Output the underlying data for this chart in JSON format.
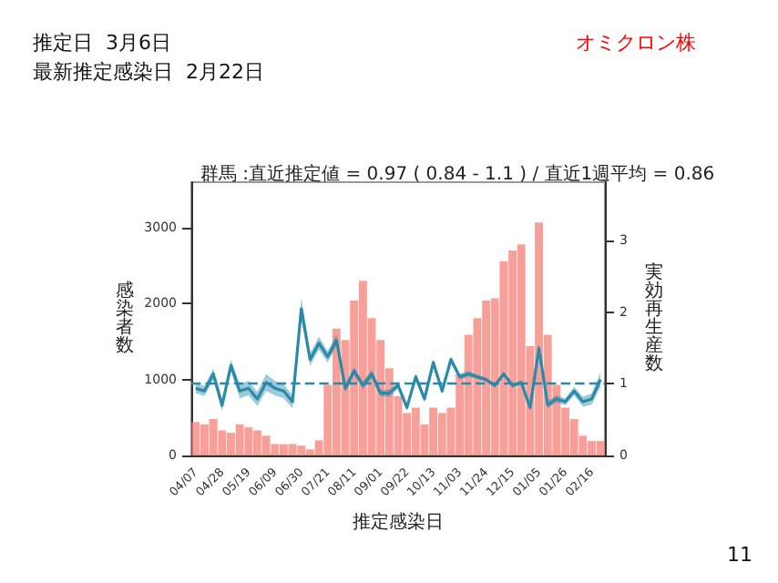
{
  "chart_data": {
    "type": "bar",
    "title": "群馬 :直近推定値 = 0.97 ( 0.84 - 1.1 ) / 直近1週平均 = 0.86",
    "xlabel": "推定感染日",
    "ylabel": "感染者数",
    "y2label": "実効再生産数",
    "annotations": [
      "推定日  3月6日",
      "最新推定感染日  2月22日",
      "オミクロン株",
      "11"
    ],
    "categories": [
      "04/07",
      null,
      null,
      "04/28",
      null,
      null,
      "05/19",
      null,
      null,
      "06/09",
      null,
      null,
      "06/30",
      null,
      null,
      "07/21",
      null,
      null,
      "08/11",
      null,
      null,
      "09/01",
      null,
      null,
      "09/22",
      null,
      null,
      "10/13",
      null,
      null,
      "11/03",
      null,
      null,
      "11/24",
      null,
      null,
      "12/15",
      null,
      null,
      "01/05",
      null,
      null,
      "01/26",
      null,
      null,
      "02/16",
      null
    ],
    "series": [
      {
        "color": "#f8877f",
        "values": [
          440,
          410,
          480,
          330,
          300,
          410,
          370,
          330,
          260,
          150,
          150,
          150,
          130,
          80,
          200,
          930,
          1670,
          1520,
          2040,
          2300,
          1810,
          1520,
          1150,
          780,
          560,
          630,
          410,
          630,
          560,
          630,
          1070,
          1590,
          1810,
          2040,
          2070,
          2560,
          2700,
          2780,
          1440,
          3070,
          1590,
          930,
          630,
          480,
          260,
          190,
          190
        ]
      },
      {
        "type": "line",
        "axis": "y2",
        "color": "#2a8aaa",
        "values": [
          0.94,
          0.9,
          1.14,
          0.7,
          1.26,
          0.9,
          0.94,
          0.79,
          1.02,
          0.94,
          0.9,
          0.75,
          2.05,
          1.34,
          1.57,
          1.38,
          1.61,
          0.94,
          1.18,
          0.98,
          1.14,
          0.87,
          0.87,
          0.98,
          0.67,
          1.1,
          0.79,
          1.3,
          0.9,
          1.34,
          1.1,
          1.14,
          1.1,
          1.06,
          0.98,
          1.14,
          0.98,
          1.02,
          0.67,
          1.5,
          0.71,
          0.79,
          0.75,
          0.9,
          0.75,
          0.79,
          1.06
        ],
        "lower": [
          0.87,
          0.83,
          1.06,
          0.62,
          1.18,
          0.8,
          0.84,
          0.69,
          0.9,
          0.84,
          0.8,
          0.66,
          1.9,
          1.25,
          1.48,
          1.3,
          1.53,
          0.88,
          1.12,
          0.93,
          1.08,
          0.82,
          0.82,
          0.93,
          0.62,
          1.05,
          0.74,
          1.25,
          0.86,
          1.29,
          1.06,
          1.1,
          1.07,
          1.03,
          0.95,
          1.11,
          0.95,
          0.99,
          0.63,
          1.44,
          0.66,
          0.74,
          0.7,
          0.84,
          0.68,
          0.71,
          0.96
        ],
        "upper": [
          1.01,
          0.97,
          1.22,
          0.78,
          1.34,
          1.0,
          1.04,
          0.89,
          1.14,
          1.04,
          1.0,
          0.84,
          2.2,
          1.43,
          1.66,
          1.46,
          1.69,
          1.0,
          1.24,
          1.03,
          1.2,
          0.92,
          0.92,
          1.03,
          0.72,
          1.15,
          0.84,
          1.35,
          0.94,
          1.39,
          1.14,
          1.18,
          1.13,
          1.09,
          1.01,
          1.17,
          1.01,
          1.05,
          0.71,
          1.56,
          0.76,
          0.84,
          0.8,
          0.96,
          0.82,
          0.87,
          1.16
        ]
      }
    ],
    "ylim": [
      0,
      3600
    ],
    "yticks": [
      0,
      1000,
      2000,
      3000
    ],
    "y2lim": [
      0,
      3.82
    ],
    "y2ticks": [
      0,
      1,
      2,
      3
    ],
    "ref_lines": [
      {
        "axis": "y2",
        "value": 1,
        "color": "#2a8aaa",
        "line_style": "dashed"
      }
    ],
    "grid": false
  }
}
